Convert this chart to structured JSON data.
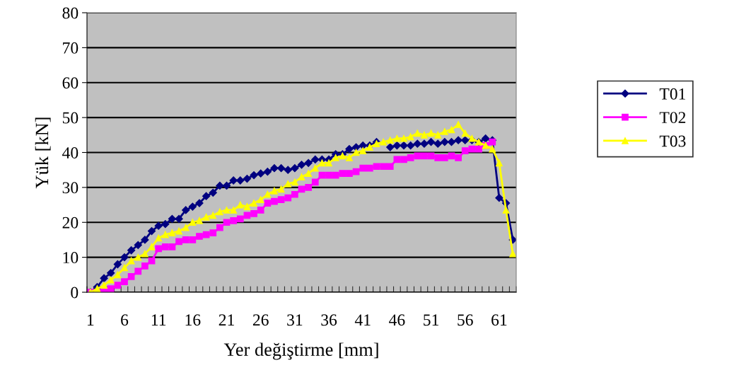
{
  "chart_data": {
    "type": "line",
    "xlabel": "Yer değiştirme [mm]",
    "ylabel": "Yük [kN]",
    "categories": [
      "1",
      null,
      null,
      null,
      null,
      "6",
      null,
      null,
      null,
      null,
      "11",
      null,
      null,
      null,
      null,
      "16",
      null,
      null,
      null,
      null,
      "21",
      null,
      null,
      null,
      null,
      "26",
      null,
      null,
      null,
      null,
      "31",
      null,
      null,
      null,
      null,
      "36",
      null,
      null,
      null,
      null,
      "41",
      null,
      null,
      null,
      null,
      "46",
      null,
      null,
      null,
      null,
      "51",
      null,
      null,
      null,
      null,
      "56",
      null,
      null,
      null,
      null,
      "61",
      null,
      null
    ],
    "ylim": [
      0,
      80
    ],
    "yticks": [
      0,
      10,
      20,
      30,
      40,
      50,
      60,
      70,
      80
    ],
    "grid": "y",
    "legend": "right",
    "series": [
      {
        "name": "T01",
        "color": "#000080",
        "marker": "diamond",
        "values": [
          0,
          1.5,
          4,
          5.5,
          8,
          10,
          12,
          13.5,
          15,
          17.5,
          19,
          19.5,
          21,
          21,
          23.5,
          24.5,
          25.5,
          27.5,
          28.5,
          30.5,
          30.5,
          32,
          32,
          32.5,
          33.5,
          34,
          34.5,
          35.5,
          35.5,
          35,
          35.5,
          36.5,
          37,
          38,
          38,
          38,
          39.5,
          39.5,
          41,
          41.5,
          42,
          42,
          43,
          null,
          41.5,
          42,
          42,
          42,
          42.5,
          42.5,
          43,
          42.5,
          43,
          43,
          43.5,
          43.5,
          43.5,
          43,
          44,
          43.5,
          27,
          25.5,
          15
        ]
      },
      {
        "name": "T02",
        "color": "#ff00ff",
        "marker": "square",
        "values": [
          0,
          0,
          0.5,
          1,
          2,
          3,
          4.5,
          6,
          7.5,
          9,
          12.5,
          13,
          13,
          14.5,
          15,
          15,
          16,
          16.5,
          17,
          18.5,
          20,
          20.5,
          21,
          22,
          22.5,
          23.5,
          25.5,
          26,
          26.5,
          27,
          28,
          29.5,
          30,
          31.5,
          33.5,
          33.5,
          33.5,
          34,
          34,
          34.5,
          35.5,
          35.5,
          36,
          36,
          36,
          38,
          38,
          38.5,
          39,
          39,
          39,
          38.5,
          38.5,
          39,
          38.5,
          40.5,
          41,
          41,
          42,
          43,
          null,
          null,
          null
        ]
      },
      {
        "name": "T03",
        "color": "#ffff00",
        "marker": "triangle",
        "values": [
          0,
          1,
          2,
          3.5,
          5,
          7,
          9,
          10,
          11,
          13,
          15.5,
          16.5,
          17,
          17.5,
          18.5,
          20,
          20.5,
          21.5,
          22,
          23,
          23.5,
          23.5,
          25,
          24.5,
          25.5,
          26.5,
          28,
          29,
          29.5,
          31,
          31.5,
          33,
          34,
          35.5,
          37,
          37,
          38.5,
          39,
          38.5,
          40,
          40.5,
          41.5,
          42.5,
          43,
          43.5,
          44,
          44,
          44.5,
          45.5,
          45,
          45.5,
          45,
          46,
          46.5,
          48,
          45.5,
          44,
          43,
          42,
          41,
          37,
          23.5,
          11
        ]
      }
    ]
  }
}
